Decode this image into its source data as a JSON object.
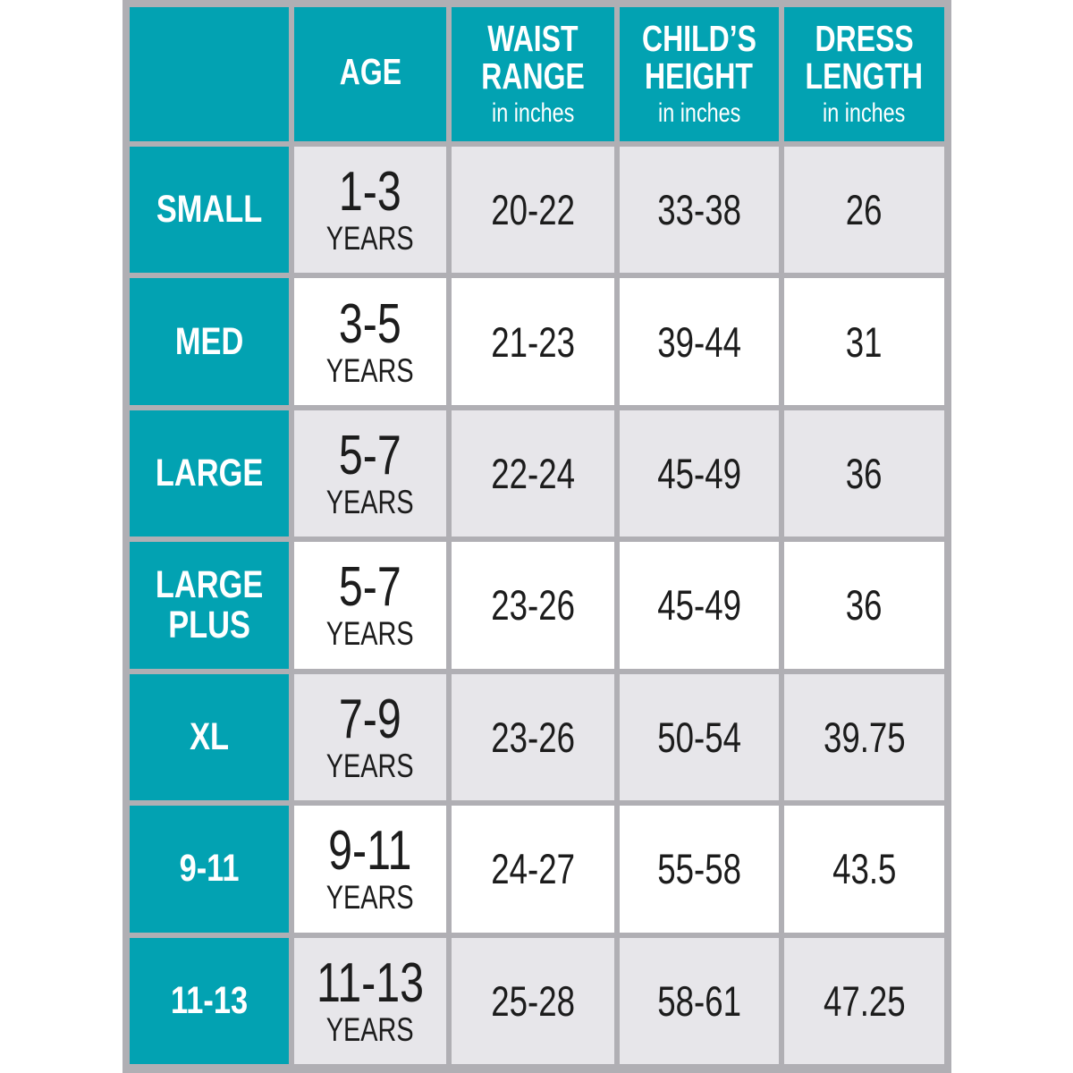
{
  "colors": {
    "teal": "#02a2b2",
    "border": "#b0afb4",
    "row_alt": "#e7e6ea",
    "row_white": "#ffffff",
    "text": "#1c1c1c",
    "header_text": "#ffffff"
  },
  "chart_data": {
    "type": "table",
    "header": {
      "corner": "",
      "age": {
        "line1": "AGE",
        "line2": "",
        "sub": ""
      },
      "waist": {
        "line1": "WAIST",
        "line2": "RANGE",
        "sub": "in inches"
      },
      "height": {
        "line1": "CHILD’S",
        "line2": "HEIGHT",
        "sub": "in inches"
      },
      "dress": {
        "line1": "DRESS",
        "line2": "LENGTH",
        "sub": "in inches"
      }
    },
    "rows": [
      {
        "size": "SMALL",
        "age": "1-3",
        "age_unit": "YEARS",
        "waist": "20-22",
        "height": "33-38",
        "dress": "26"
      },
      {
        "size": "MED",
        "age": "3-5",
        "age_unit": "YEARS",
        "waist": "21-23",
        "height": "39-44",
        "dress": "31"
      },
      {
        "size": "LARGE",
        "age": "5-7",
        "age_unit": "YEARS",
        "waist": "22-24",
        "height": "45-49",
        "dress": "36"
      },
      {
        "size": "LARGE PLUS",
        "age": "5-7",
        "age_unit": "YEARS",
        "waist": "23-26",
        "height": "45-49",
        "dress": "36"
      },
      {
        "size": "XL",
        "age": "7-9",
        "age_unit": "YEARS",
        "waist": "23-26",
        "height": "50-54",
        "dress": "39.75"
      },
      {
        "size": "9-11",
        "age": "9-11",
        "age_unit": "YEARS",
        "waist": "24-27",
        "height": "55-58",
        "dress": "43.5"
      },
      {
        "size": "11-13",
        "age": "11-13",
        "age_unit": "YEARS",
        "waist": "25-28",
        "height": "58-61",
        "dress": "47.25"
      }
    ]
  }
}
